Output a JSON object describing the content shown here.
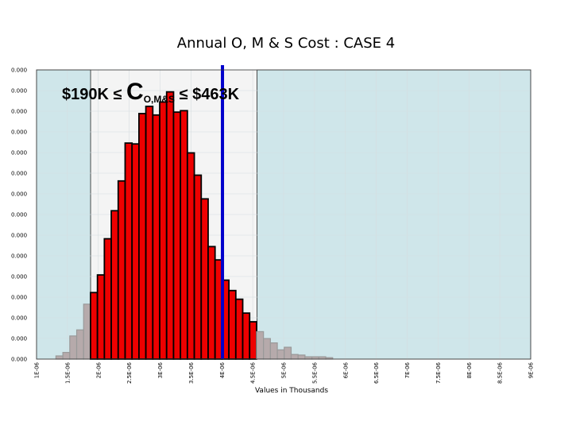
{
  "chart_data": {
    "type": "bar",
    "title": "Annual O, M & S Cost : CASE 4",
    "xlabel": "Values in Thousands",
    "ylabel": "",
    "xlim": [
      1000000,
      9000000
    ],
    "ylim": [
      0,
      1
    ],
    "x_ticks": [
      1000000,
      1500000,
      2000000,
      2500000,
      3000000,
      3500000,
      4000000,
      4500000,
      5000000,
      5500000,
      6000000,
      6500000,
      7000000,
      7500000,
      8000000,
      8500000,
      9000000
    ],
    "x_tick_labels": [
      "1E-06",
      "1.5E-06",
      "2E-06",
      "2.5E-06",
      "3E-06",
      "3.5E-06",
      "4E-06",
      "4.5E-06",
      "5E-06",
      "5.5E-06",
      "6E-06",
      "6.5E-06",
      "7E-06",
      "7.5E-06",
      "8E-06",
      "8.5E-06",
      "9E-06"
    ],
    "y_tick_labels": [
      "0.000",
      "0.000",
      "0.000",
      "0.000",
      "0.000",
      "0.000",
      "0.000",
      "0.000",
      "0.000",
      "0.000",
      "0.000",
      "0.000",
      "0.000",
      "0.000",
      "0.000"
    ],
    "bin_width": 112000,
    "bins": [
      {
        "x": 1370000,
        "v": 0.011,
        "in": false
      },
      {
        "x": 1482000,
        "v": 0.023,
        "in": false
      },
      {
        "x": 1594000,
        "v": 0.08,
        "in": false
      },
      {
        "x": 1706000,
        "v": 0.101,
        "in": false
      },
      {
        "x": 1818000,
        "v": 0.19,
        "in": false
      },
      {
        "x": 1930000,
        "v": 0.23,
        "in": true
      },
      {
        "x": 2042000,
        "v": 0.291,
        "in": true
      },
      {
        "x": 2154000,
        "v": 0.416,
        "in": true
      },
      {
        "x": 2266000,
        "v": 0.513,
        "in": true
      },
      {
        "x": 2378000,
        "v": 0.616,
        "in": true
      },
      {
        "x": 2490000,
        "v": 0.747,
        "in": true
      },
      {
        "x": 2602000,
        "v": 0.744,
        "in": true
      },
      {
        "x": 2714000,
        "v": 0.849,
        "in": true
      },
      {
        "x": 2826000,
        "v": 0.874,
        "in": true
      },
      {
        "x": 2938000,
        "v": 0.844,
        "in": true
      },
      {
        "x": 3050000,
        "v": 0.889,
        "in": true
      },
      {
        "x": 3162000,
        "v": 0.924,
        "in": true
      },
      {
        "x": 3274000,
        "v": 0.854,
        "in": true
      },
      {
        "x": 3386000,
        "v": 0.859,
        "in": true
      },
      {
        "x": 3498000,
        "v": 0.713,
        "in": true
      },
      {
        "x": 3610000,
        "v": 0.636,
        "in": true
      },
      {
        "x": 3722000,
        "v": 0.554,
        "in": true
      },
      {
        "x": 3834000,
        "v": 0.389,
        "in": true
      },
      {
        "x": 3946000,
        "v": 0.343,
        "in": true
      },
      {
        "x": 4058000,
        "v": 0.273,
        "in": true
      },
      {
        "x": 4170000,
        "v": 0.237,
        "in": true
      },
      {
        "x": 4282000,
        "v": 0.207,
        "in": true
      },
      {
        "x": 4394000,
        "v": 0.159,
        "in": true
      },
      {
        "x": 4506000,
        "v": 0.129,
        "in": true
      },
      {
        "x": 4618000,
        "v": 0.095,
        "in": false
      },
      {
        "x": 4730000,
        "v": 0.071,
        "in": false
      },
      {
        "x": 4842000,
        "v": 0.056,
        "in": false
      },
      {
        "x": 4954000,
        "v": 0.032,
        "in": false
      },
      {
        "x": 5066000,
        "v": 0.041,
        "in": false
      },
      {
        "x": 5178000,
        "v": 0.016,
        "in": false
      },
      {
        "x": 5290000,
        "v": 0.014,
        "in": false
      },
      {
        "x": 5402000,
        "v": 0.008,
        "in": false
      },
      {
        "x": 5514000,
        "v": 0.008,
        "in": false
      },
      {
        "x": 5626000,
        "v": 0.008,
        "in": false
      },
      {
        "x": 5738000,
        "v": 0.005,
        "in": false
      }
    ],
    "shaded_ranges": [
      [
        1000000,
        1875000
      ],
      [
        4570000,
        9000000
      ]
    ],
    "marker_x": 4010000,
    "annotation": {
      "before": "$190K ≤ ",
      "symbol": "C",
      "subscript": "O,M&S",
      "after": " ≤ $463K"
    },
    "colors": {
      "in_range_bar": "#ee0000",
      "in_range_edge": "#000000",
      "out_range_bar": "#b6aaab",
      "out_range_edge": "#999999",
      "shaded_bg": "#cfe6ea",
      "plot_bg": "#f4f4f4",
      "marker": "#0000cc",
      "grid": "#d6dde0"
    },
    "grid": true
  }
}
